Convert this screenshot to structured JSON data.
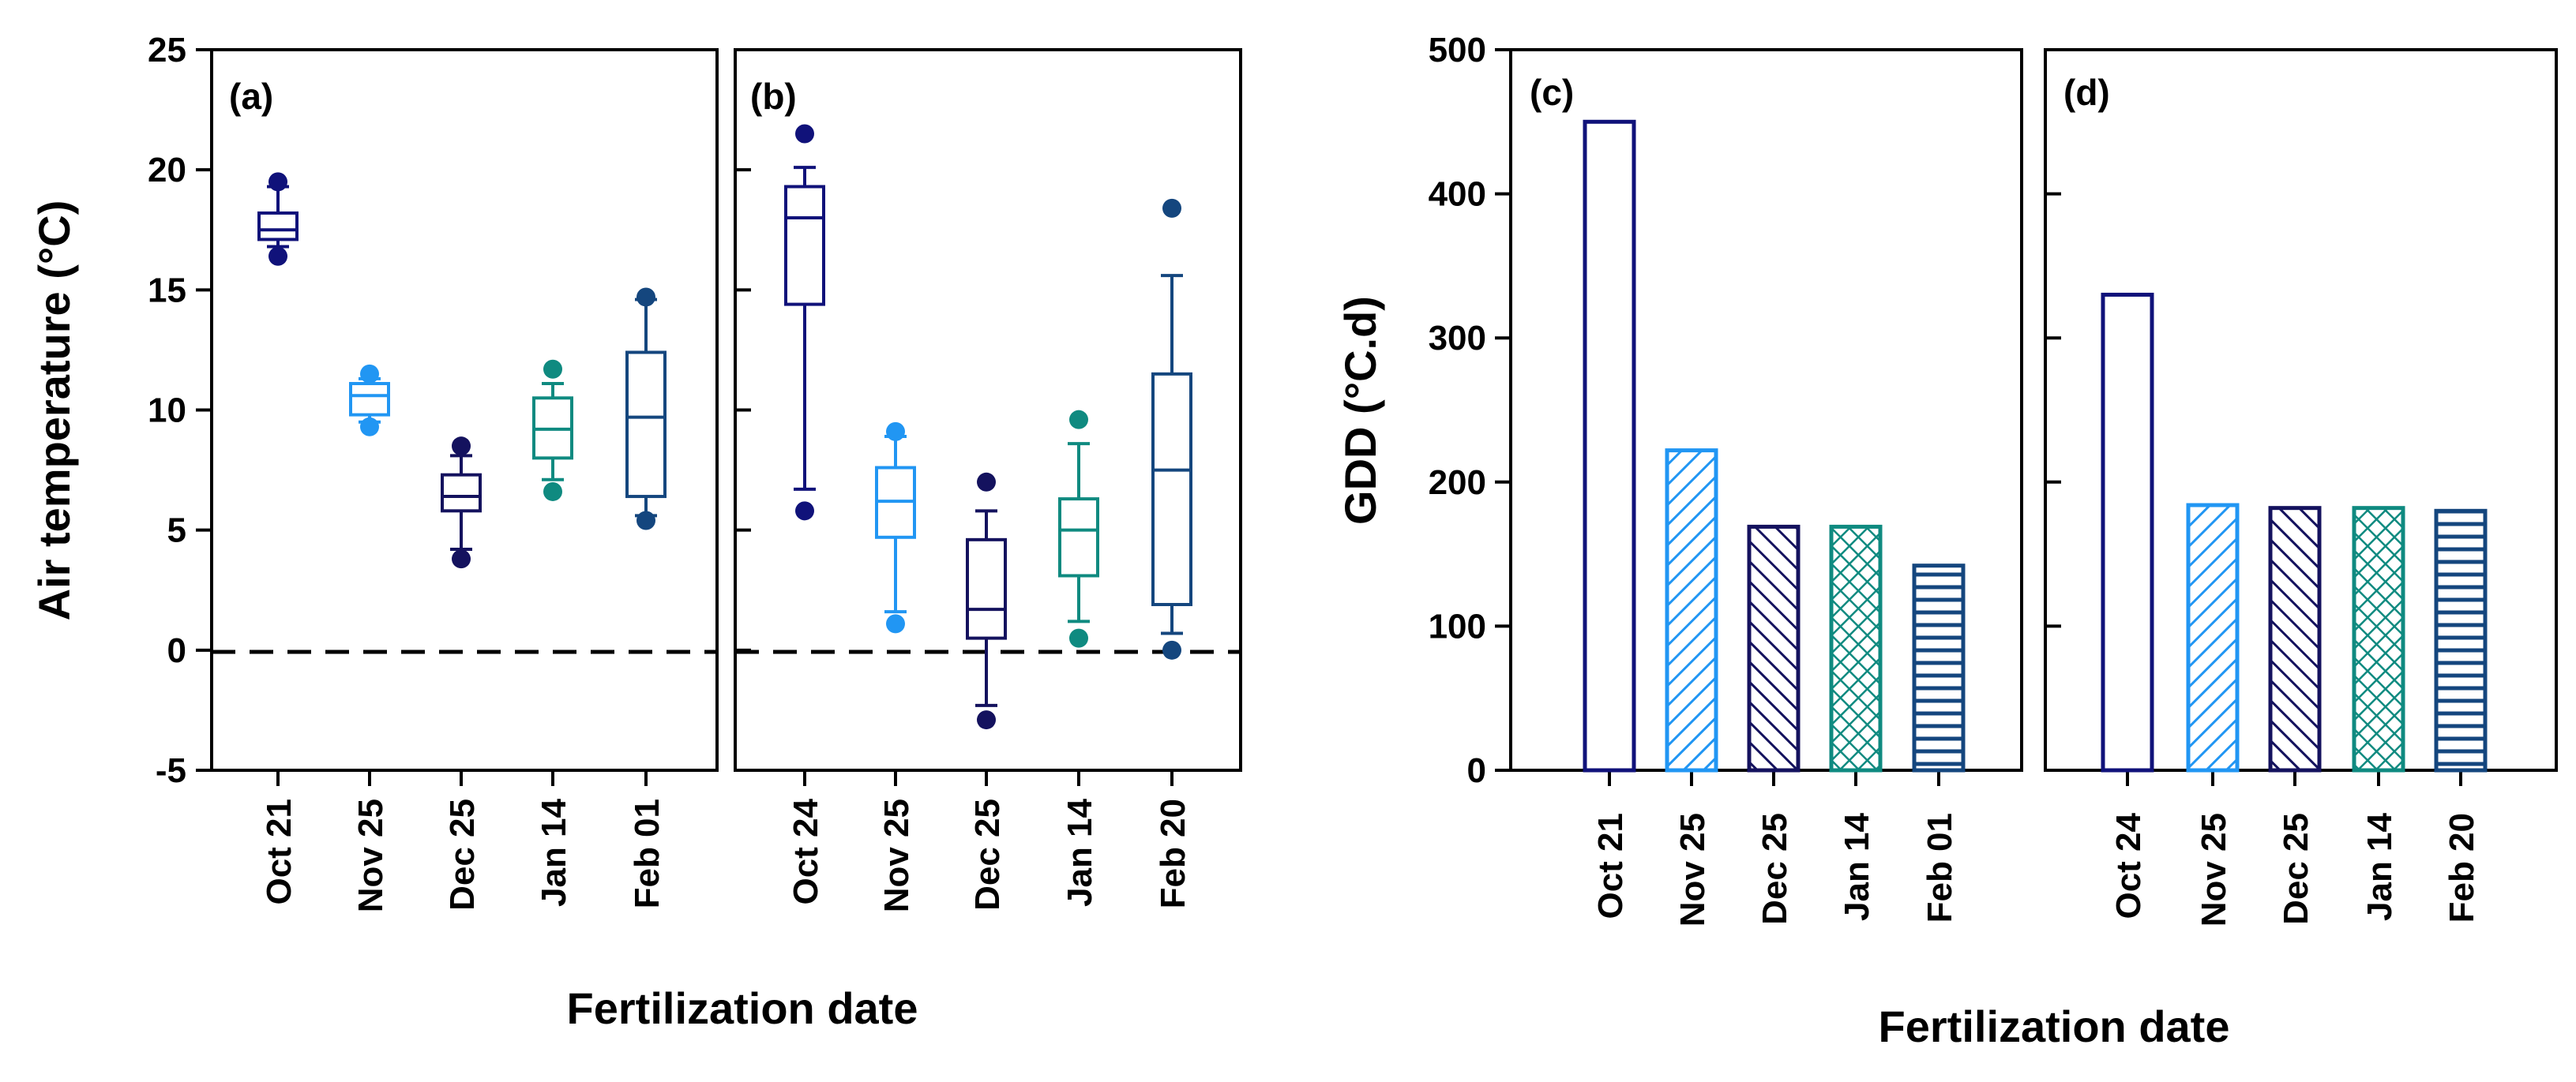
{
  "chart_data": [
    {
      "type": "box",
      "panel_label": "(a)",
      "ylabel": "Air temperature (°C)",
      "xlabel": "Fertilization date",
      "ylim": [
        -5,
        25
      ],
      "yticks": [
        -5,
        0,
        5,
        10,
        15,
        20,
        25
      ],
      "reference_line": 0,
      "categories": [
        "Oct 21",
        "Nov 25",
        "Dec 25",
        "Jan 14",
        "Feb 01"
      ],
      "boxes": [
        {
          "low_outlier": 16.4,
          "whisker_low": 16.8,
          "q1": 17.1,
          "median": 17.5,
          "q3": 18.2,
          "whisker_high": 19.3,
          "high_outlier": 19.5,
          "color": "#10127a"
        },
        {
          "low_outlier": 9.3,
          "whisker_low": 9.5,
          "q1": 9.8,
          "median": 10.6,
          "q3": 11.1,
          "whisker_high": 11.3,
          "high_outlier": 11.5,
          "color": "#2196f3"
        },
        {
          "low_outlier": 3.8,
          "whisker_low": 4.2,
          "q1": 5.8,
          "median": 6.4,
          "q3": 7.3,
          "whisker_high": 8.1,
          "high_outlier": 8.5,
          "color": "#14125e"
        },
        {
          "low_outlier": 6.6,
          "whisker_low": 7.1,
          "q1": 8.0,
          "median": 9.2,
          "q3": 10.5,
          "whisker_high": 11.1,
          "high_outlier": 11.7,
          "color": "#0f8a80"
        },
        {
          "low_outlier": 5.4,
          "whisker_low": 5.6,
          "q1": 6.4,
          "median": 9.7,
          "q3": 12.4,
          "whisker_high": 14.6,
          "high_outlier": 14.7,
          "color": "#14467e"
        }
      ]
    },
    {
      "type": "box",
      "panel_label": "(b)",
      "ylim": [
        -5,
        25
      ],
      "reference_line": 0,
      "categories": [
        "Oct 24",
        "Nov 25",
        "Dec 25",
        "Jan 14",
        "Feb 20"
      ],
      "boxes": [
        {
          "low_outlier": 5.8,
          "whisker_low": 6.7,
          "q1": 14.4,
          "median": 18.0,
          "q3": 19.3,
          "whisker_high": 20.1,
          "high_outlier": 21.5,
          "color": "#10127a"
        },
        {
          "low_outlier": 1.1,
          "whisker_low": 1.6,
          "q1": 4.7,
          "median": 6.2,
          "q3": 7.6,
          "whisker_high": 8.9,
          "high_outlier": 9.1,
          "color": "#2196f3"
        },
        {
          "low_outlier": -2.9,
          "whisker_low": -2.3,
          "q1": 0.5,
          "median": 1.7,
          "q3": 4.6,
          "whisker_high": 5.8,
          "high_outlier": 7.0,
          "color": "#14125e"
        },
        {
          "low_outlier": 0.5,
          "whisker_low": 1.2,
          "q1": 3.1,
          "median": 5.0,
          "q3": 6.3,
          "whisker_high": 8.6,
          "high_outlier": 9.6,
          "color": "#0f8a80"
        },
        {
          "low_outlier": 0.0,
          "whisker_low": 0.7,
          "q1": 1.9,
          "median": 7.5,
          "q3": 11.5,
          "whisker_high": 15.6,
          "high_outlier": 18.4,
          "color": "#14467e"
        }
      ]
    },
    {
      "type": "bar",
      "panel_label": "(c)",
      "ylabel": "GDD (°C.d)",
      "xlabel": "Fertilization date",
      "ylim": [
        0,
        500
      ],
      "yticks": [
        0,
        100,
        200,
        300,
        400,
        500
      ],
      "categories": [
        "Oct 21",
        "Nov 25",
        "Dec 25",
        "Jan 14",
        "Feb 01"
      ],
      "values": [
        450,
        222,
        169,
        169,
        142
      ],
      "colors": [
        "#10127a",
        "#2196f3",
        "#14125e",
        "#0f8a80",
        "#14467e"
      ],
      "patterns": [
        "none",
        "diagonal-right",
        "diagonal-left",
        "crosshatch",
        "horizontal"
      ]
    },
    {
      "type": "bar",
      "panel_label": "(d)",
      "ylim": [
        0,
        500
      ],
      "categories": [
        "Oct 24",
        "Nov 25",
        "Dec 25",
        "Jan 14",
        "Feb 20"
      ],
      "values": [
        330,
        184,
        182,
        182,
        180
      ],
      "colors": [
        "#10127a",
        "#2196f3",
        "#14125e",
        "#0f8a80",
        "#14467e"
      ],
      "patterns": [
        "none",
        "diagonal-right",
        "diagonal-left",
        "crosshatch",
        "horizontal"
      ]
    }
  ]
}
